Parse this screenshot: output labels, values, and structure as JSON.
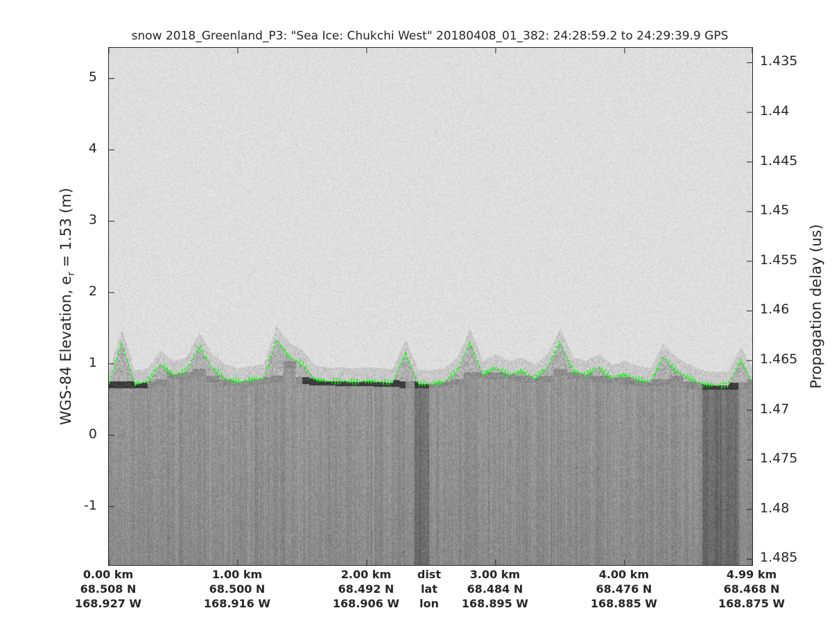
{
  "title": "snow 2018_Greenland_P3: \"Sea Ice: Chukchi West\"  20180408_01_382: 24:28:59.2 to 24:29:39.9 GPS",
  "chart_data": {
    "type": "heatmap",
    "title": "snow 2018_Greenland_P3: \"Sea Ice: Chukchi West\"  20180408_01_382: 24:28:59.2 to 24:29:39.9 GPS",
    "ylabel_left": "WGS-84 Elevation, e",
    "ylabel_left_sub": "r",
    "ylabel_left_suffix": " = 1.53 (m)",
    "ylabel_right": "Propagation delay (us)",
    "ylim_left": [
      -1.82,
      5.43
    ],
    "yticks_left": [
      "5",
      "4",
      "3",
      "2",
      "1",
      "0",
      "-1"
    ],
    "ytick_values_left": [
      5,
      4,
      3,
      2,
      1,
      0,
      -1
    ],
    "ylim_right": [
      1.4335,
      1.4856
    ],
    "yticks_right": [
      "1.435",
      "1.44",
      "1.445",
      "1.45",
      "1.455",
      "1.46",
      "1.465",
      "1.47",
      "1.475",
      "1.48",
      "1.485"
    ],
    "ytick_values_right": [
      1.435,
      1.44,
      1.445,
      1.45,
      1.455,
      1.46,
      1.465,
      1.47,
      1.475,
      1.48,
      1.485
    ],
    "xlim_km": [
      0,
      4.99
    ],
    "xticks": [
      {
        "km": 0,
        "dist": "0.00 km",
        "lat": "68.508 N",
        "lon": "168.927 W"
      },
      {
        "km": 1,
        "dist": "1.00 km",
        "lat": "68.500 N",
        "lon": "168.916 W"
      },
      {
        "km": 2,
        "dist": "2.00 km",
        "lat": "68.492 N",
        "lon": "168.906 W"
      },
      {
        "km": 3,
        "dist": "3.00 km",
        "lat": "68.484 N",
        "lon": "168.895 W"
      },
      {
        "km": 4,
        "dist": "4.00 km",
        "lat": "68.476 N",
        "lon": "168.885 W"
      },
      {
        "km": 4.99,
        "dist": "4.99 km",
        "lat": "68.468 N",
        "lon": "168.875 W"
      }
    ],
    "row_labels": {
      "km": 2.5,
      "dist": "dist",
      "lat": "lat",
      "lon": "lon"
    },
    "colormap": "gray",
    "surface_layer": {
      "color": "#00ff00",
      "style": "dashed",
      "x_km": [
        0,
        0.1,
        0.2,
        0.3,
        0.4,
        0.5,
        0.6,
        0.7,
        0.8,
        0.9,
        1.0,
        1.1,
        1.2,
        1.3,
        1.4,
        1.5,
        1.6,
        1.7,
        1.8,
        1.9,
        2.0,
        2.1,
        2.2,
        2.3,
        2.4,
        2.5,
        2.6,
        2.7,
        2.8,
        2.9,
        3.0,
        3.1,
        3.2,
        3.3,
        3.4,
        3.5,
        3.6,
        3.7,
        3.8,
        3.9,
        4.0,
        4.1,
        4.2,
        4.3,
        4.4,
        4.5,
        4.6,
        4.7,
        4.8,
        4.9,
        4.99
      ],
      "elevation_m": [
        0.72,
        1.3,
        0.72,
        0.75,
        1.0,
        0.85,
        0.9,
        1.25,
        0.95,
        0.8,
        0.75,
        0.78,
        0.8,
        1.35,
        1.1,
        1.0,
        0.78,
        0.76,
        0.76,
        0.75,
        0.76,
        0.75,
        0.74,
        1.15,
        0.72,
        0.72,
        0.75,
        0.9,
        1.3,
        0.85,
        0.95,
        0.85,
        0.9,
        0.8,
        0.95,
        1.3,
        0.9,
        0.85,
        0.95,
        0.8,
        0.85,
        0.78,
        0.75,
        1.1,
        0.9,
        0.8,
        0.72,
        0.7,
        0.7,
        1.05,
        0.75
      ]
    }
  }
}
